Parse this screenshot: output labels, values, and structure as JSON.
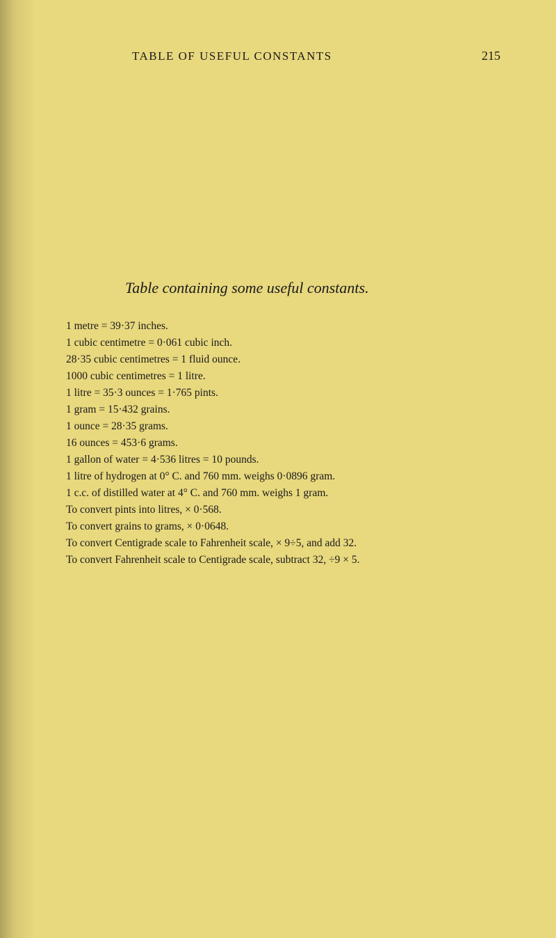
{
  "header": {
    "title": "TABLE OF USEFUL CONSTANTS",
    "page_number": "215"
  },
  "title": "Table containing some useful constants.",
  "lines": [
    "1 metre = 39·37 inches.",
    "1 cubic centimetre = 0·061 cubic inch.",
    "28·35 cubic centimetres = 1 fluid ounce.",
    "1000 cubic centimetres = 1 litre.",
    "1 litre = 35·3 ounces = 1·765 pints.",
    "1 gram = 15·432 grains.",
    "1 ounce = 28·35 grams.",
    "16 ounces = 453·6 grams.",
    "1 gallon of water = 4·536 litres = 10 pounds.",
    "1 litre of hydrogen at 0° C. and 760 mm. weighs 0·0896 gram.",
    "1 c.c. of distilled water at 4° C. and 760 mm. weighs 1 gram.",
    "To convert pints into litres, × 0·568.",
    "To convert grains to grams, × 0·0648.",
    "To convert Centigrade scale to Fahrenheit scale, × 9÷5, and add 32.",
    "To convert Fahrenheit scale to Centigrade scale, subtract 32, ÷9 × 5."
  ]
}
